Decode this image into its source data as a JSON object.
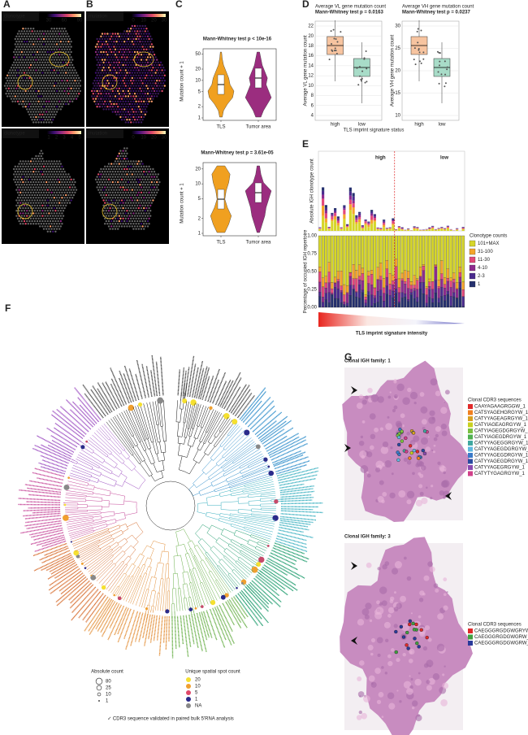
{
  "panels": {
    "A": {
      "letter": "A",
      "top_label": "clonotype",
      "top_ticks": [
        "30",
        "60",
        "90"
      ],
      "bottom_label": "clonotype",
      "bottom_ticks": [
        "1",
        "2",
        "3",
        "4",
        "5"
      ]
    },
    "B": {
      "letter": "B",
      "top_label": "mutation",
      "top_ticks": [
        "0",
        "10",
        "20",
        "30"
      ],
      "bottom_label": "mutation",
      "bottom_ticks": [
        "0",
        "10",
        "20",
        "30"
      ]
    },
    "C": {
      "letter": "C",
      "y_label": "Mutation count + 1",
      "plots": [
        {
          "title": "Mann-Whitney test  p < 10e-16",
          "yticks": [
            "1",
            "2",
            "5",
            "10",
            "20",
            "50"
          ],
          "categories": [
            "TLS",
            "Tumor area"
          ]
        },
        {
          "title": "Mann-Whitney test  p =  3.61e-05",
          "yticks": [
            "1",
            "2",
            "5",
            "10",
            "20"
          ],
          "categories": [
            "TLS",
            "Tumor area"
          ]
        }
      ]
    },
    "D": {
      "letter": "D",
      "x_label": "TLS imprint signature status",
      "plots": [
        {
          "title": "Average VL gene mutation count",
          "subtitle": "Mann-Whitney test  p = 0.0163",
          "y_label": "Average VL gene mutation count",
          "yticks": [
            "4",
            "6",
            "8",
            "10",
            "12",
            "14",
            "16",
            "18",
            "20",
            "22"
          ],
          "categories": [
            "high",
            "low"
          ]
        },
        {
          "title": "Average VH gene mutation count",
          "subtitle": "Mann-Whitney test  p = 0.0237",
          "y_label": "Average VH gene mutation count",
          "yticks": [
            "10",
            "15",
            "20",
            "25",
            "30"
          ],
          "categories": [
            "high",
            "low"
          ]
        }
      ]
    },
    "E": {
      "letter": "E",
      "groups": [
        "high",
        "low"
      ],
      "top_y_label": "Absolute IGH clonotype count",
      "bottom_y_label": "Percentage of occupied IGH repertoire",
      "bottom_yticks": [
        "0.00",
        "0.25",
        "0.50",
        "0.75",
        "1.00"
      ],
      "legend_title": "Clonotype counts",
      "legend": [
        "101+MAX",
        "31-100",
        "11-30",
        "4-10",
        "2-3",
        "1"
      ],
      "x_label": "TLS imprint signature intensity"
    },
    "F": {
      "letter": "F",
      "size_title": "Absolute count",
      "sizes": [
        "80",
        "25",
        "10",
        "1"
      ],
      "spot_title": "Unique spatial spot count",
      "spots": [
        "20",
        "10",
        "5",
        "1",
        "NA"
      ],
      "footnote": "✓ CDR3 sequence validated in paired bulk 5'RNA analysis"
    },
    "G": {
      "letter": "G",
      "families": [
        {
          "title": "Clonal IGH family: 1",
          "legend_title": "Clonal CDR3 sequences",
          "sequences": [
            "CAAYAGAAGRGGW_1",
            "CATSYAGEHGRGYW_1",
            "CATYYAGEAGRGYW_1",
            "CATYIAGEAGRGYW_1",
            "CATYIAGEGDGRGYW_1",
            "CATYIAGEGDRGYW_1",
            "CATYYAGEGGRGYW_1",
            "CATYYAGEGDGRGYW_1 ✓",
            "CATYYAGEGDRGYW_1 ✓",
            "CATYYAGEGDRGYW_1' ✓",
            "CATYYAGEGRGYW_1",
            "CATYTYGAGRGYW_1"
          ]
        },
        {
          "title": "Clonal IGH family: 3",
          "legend_title": "Clonal CDR3 sequences",
          "sequences": [
            "CAEGGGRGDGWGRYW_3",
            "CAEGGGRGDGWGRW_3",
            "CAEGGGRGDGWGRW_3' ✓"
          ]
        }
      ]
    }
  }
}
